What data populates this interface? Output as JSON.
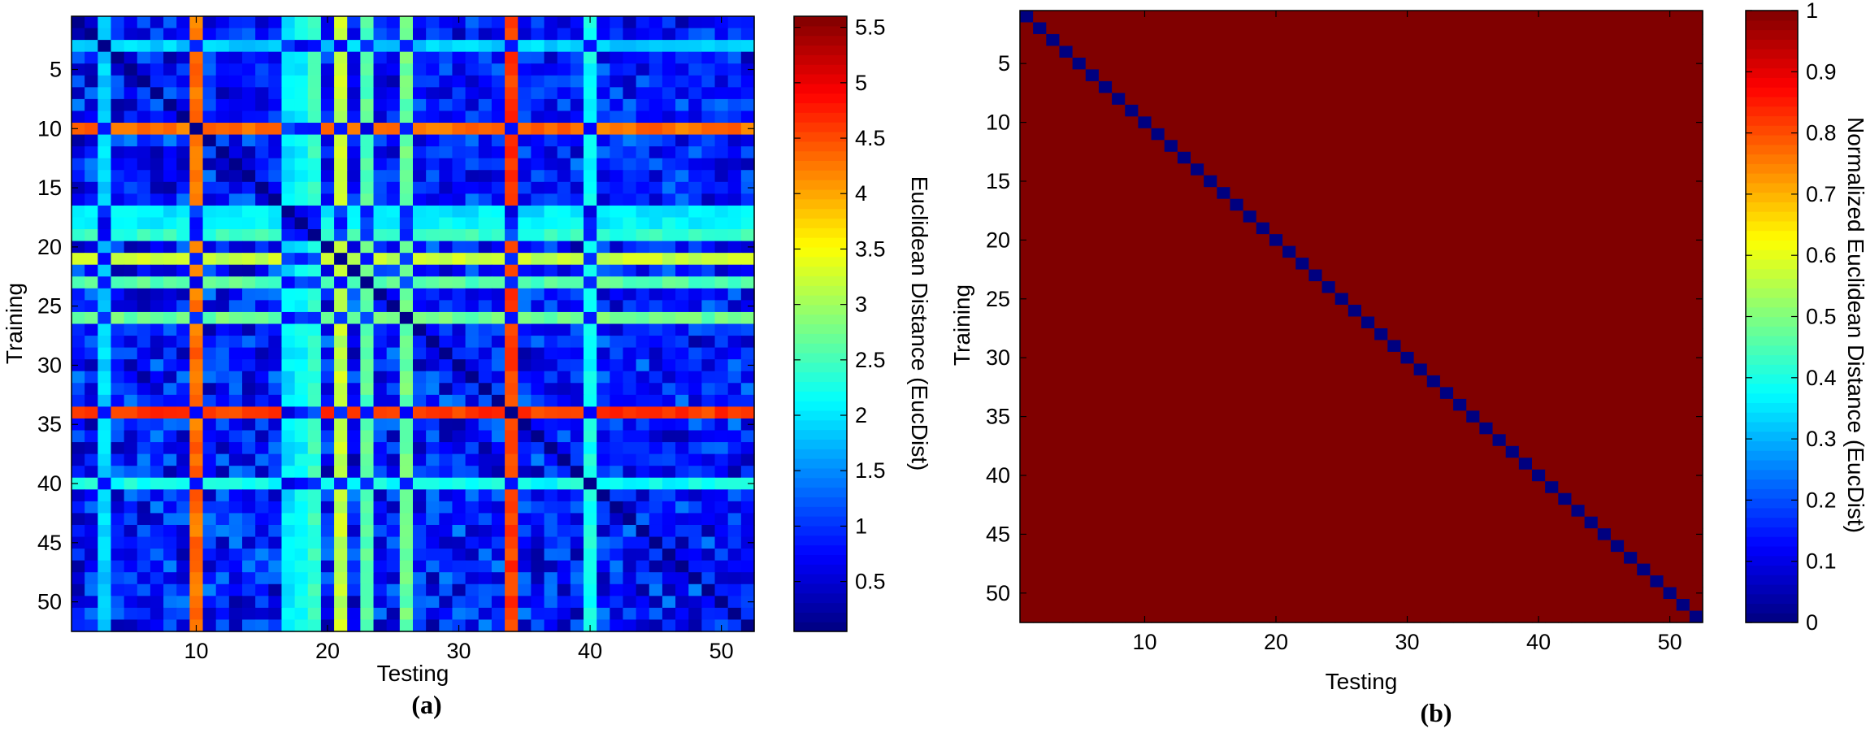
{
  "chart_data": [
    {
      "type": "heatmap",
      "panel_label": "(a)",
      "xlabel": "Testing",
      "ylabel": "Training",
      "n": 52,
      "x_ticks": [
        "10",
        "20",
        "30",
        "40",
        "50"
      ],
      "y_ticks": [
        "5",
        "10",
        "15",
        "20",
        "25",
        "30",
        "35",
        "40",
        "45",
        "50"
      ],
      "colorbar_label": "Euclidean Distance (EucDist)",
      "colorbar_ticks": [
        "0.5",
        "1",
        "1.5",
        "2",
        "2.5",
        "3",
        "3.5",
        "4",
        "4.5",
        "5",
        "5.5"
      ],
      "clim": [
        0.05,
        5.6
      ],
      "colormap": "jet",
      "diagonal_value": 0.1,
      "bright_rows": [
        {
          "index": 10,
          "level": 4.3
        },
        {
          "index": 34,
          "level": 4.6
        },
        {
          "index": 21,
          "level": 3.2
        },
        {
          "index": 26,
          "level": 2.7
        },
        {
          "index": 23,
          "level": 2.6
        },
        {
          "index": 19,
          "level": 2.4
        },
        {
          "index": 18,
          "level": 2.1
        },
        {
          "index": 40,
          "level": 2.2
        },
        {
          "index": 17,
          "level": 2.0
        },
        {
          "index": 3,
          "level": 1.9
        }
      ],
      "background_range": [
        0.4,
        1.3
      ]
    },
    {
      "type": "heatmap",
      "panel_label": "(b)",
      "xlabel": "Testing",
      "ylabel": "Training",
      "n": 52,
      "x_ticks": [
        "10",
        "20",
        "30",
        "40",
        "50"
      ],
      "y_ticks": [
        "5",
        "10",
        "15",
        "20",
        "25",
        "30",
        "35",
        "40",
        "45",
        "50"
      ],
      "colorbar_label": "Normalized Euclidean Distance (EucDist)",
      "colorbar_ticks": [
        "0",
        "0.1",
        "0.2",
        "0.3",
        "0.4",
        "0.5",
        "0.6",
        "0.7",
        "0.8",
        "0.9",
        "1"
      ],
      "clim": [
        0,
        1
      ],
      "colormap": "jet",
      "diagonal_value": 0,
      "off_diagonal_value": 1
    }
  ]
}
